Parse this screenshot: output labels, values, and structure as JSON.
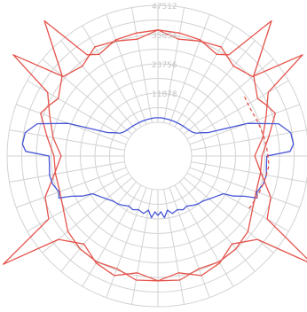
{
  "chart_data": {
    "type": "polar-line",
    "title": "",
    "radial_axis": {
      "min": 0,
      "max": 47512,
      "tick_labels": [
        "11878",
        "23756",
        "35634",
        "47512"
      ],
      "tick_values": [
        11878,
        23756,
        35634,
        47512
      ]
    },
    "angular_axis": {
      "spokes": 36,
      "spoke_step_deg": 10,
      "zero_direction": "down",
      "rotation": "counter-clockwise"
    },
    "grid": true,
    "legend": "none",
    "series": [
      {
        "color": "#e5534b",
        "style": "solid",
        "angles_deg": [
          0,
          10,
          20,
          30,
          40,
          50,
          55,
          60,
          70,
          80,
          90,
          100,
          110,
          120,
          125,
          130,
          140,
          150,
          160,
          170,
          180,
          190,
          200,
          210,
          215,
          220,
          230,
          240,
          245,
          250,
          260,
          270,
          280,
          290,
          300,
          310,
          320,
          330,
          340,
          350,
          360
        ],
        "r": [
          37000,
          34500,
          38000,
          36500,
          33000,
          39000,
          63000,
          37500,
          35000,
          29000,
          25600,
          29500,
          33000,
          38000,
          58000,
          36500,
          34000,
          37500,
          36000,
          34500,
          37500,
          37000,
          36500,
          34000,
          36500,
          58000,
          37000,
          33000,
          35000,
          37000,
          32000,
          28500,
          28500,
          28700,
          30500,
          34000,
          35500,
          36000,
          35000,
          37500,
          37000
        ]
      },
      {
        "color": "#4655d6",
        "style": "solid",
        "angles_deg": [
          0,
          3,
          6,
          10,
          14,
          20,
          25,
          30,
          35,
          40,
          45,
          50,
          55,
          60,
          62,
          65,
          67,
          70,
          75,
          80,
          85,
          90,
          92,
          95,
          100,
          105,
          110,
          115,
          118,
          120,
          122,
          125,
          130,
          135,
          140,
          145,
          150,
          155,
          160,
          165,
          170,
          175,
          180
        ],
        "r": [
          10500,
          9000,
          11500,
          8600,
          10400,
          9500,
          10400,
          9800,
          10800,
          11700,
          12200,
          13500,
          15000,
          17000,
          21000,
          25000,
          30000,
          29000,
          30500,
          31000,
          30500,
          30500,
          40000,
          41500,
          41000,
          37000,
          25000,
          8800,
          6500,
          5000,
          4000,
          3300,
          2700,
          2400,
          2200,
          2000,
          1900,
          1850,
          1800,
          1800,
          1800,
          1850,
          1850
        ]
      },
      {
        "color": "#e5534b",
        "style": "dashed",
        "angles_deg": [
          60,
          65,
          70,
          75,
          80,
          85,
          90,
          95,
          100,
          105,
          110,
          115,
          120,
          125
        ],
        "r": [
          29000,
          29500,
          30000,
          30500,
          31000,
          31500,
          31000,
          30500,
          30000,
          29500,
          29000,
          28500,
          28500,
          29000
        ]
      }
    ]
  }
}
